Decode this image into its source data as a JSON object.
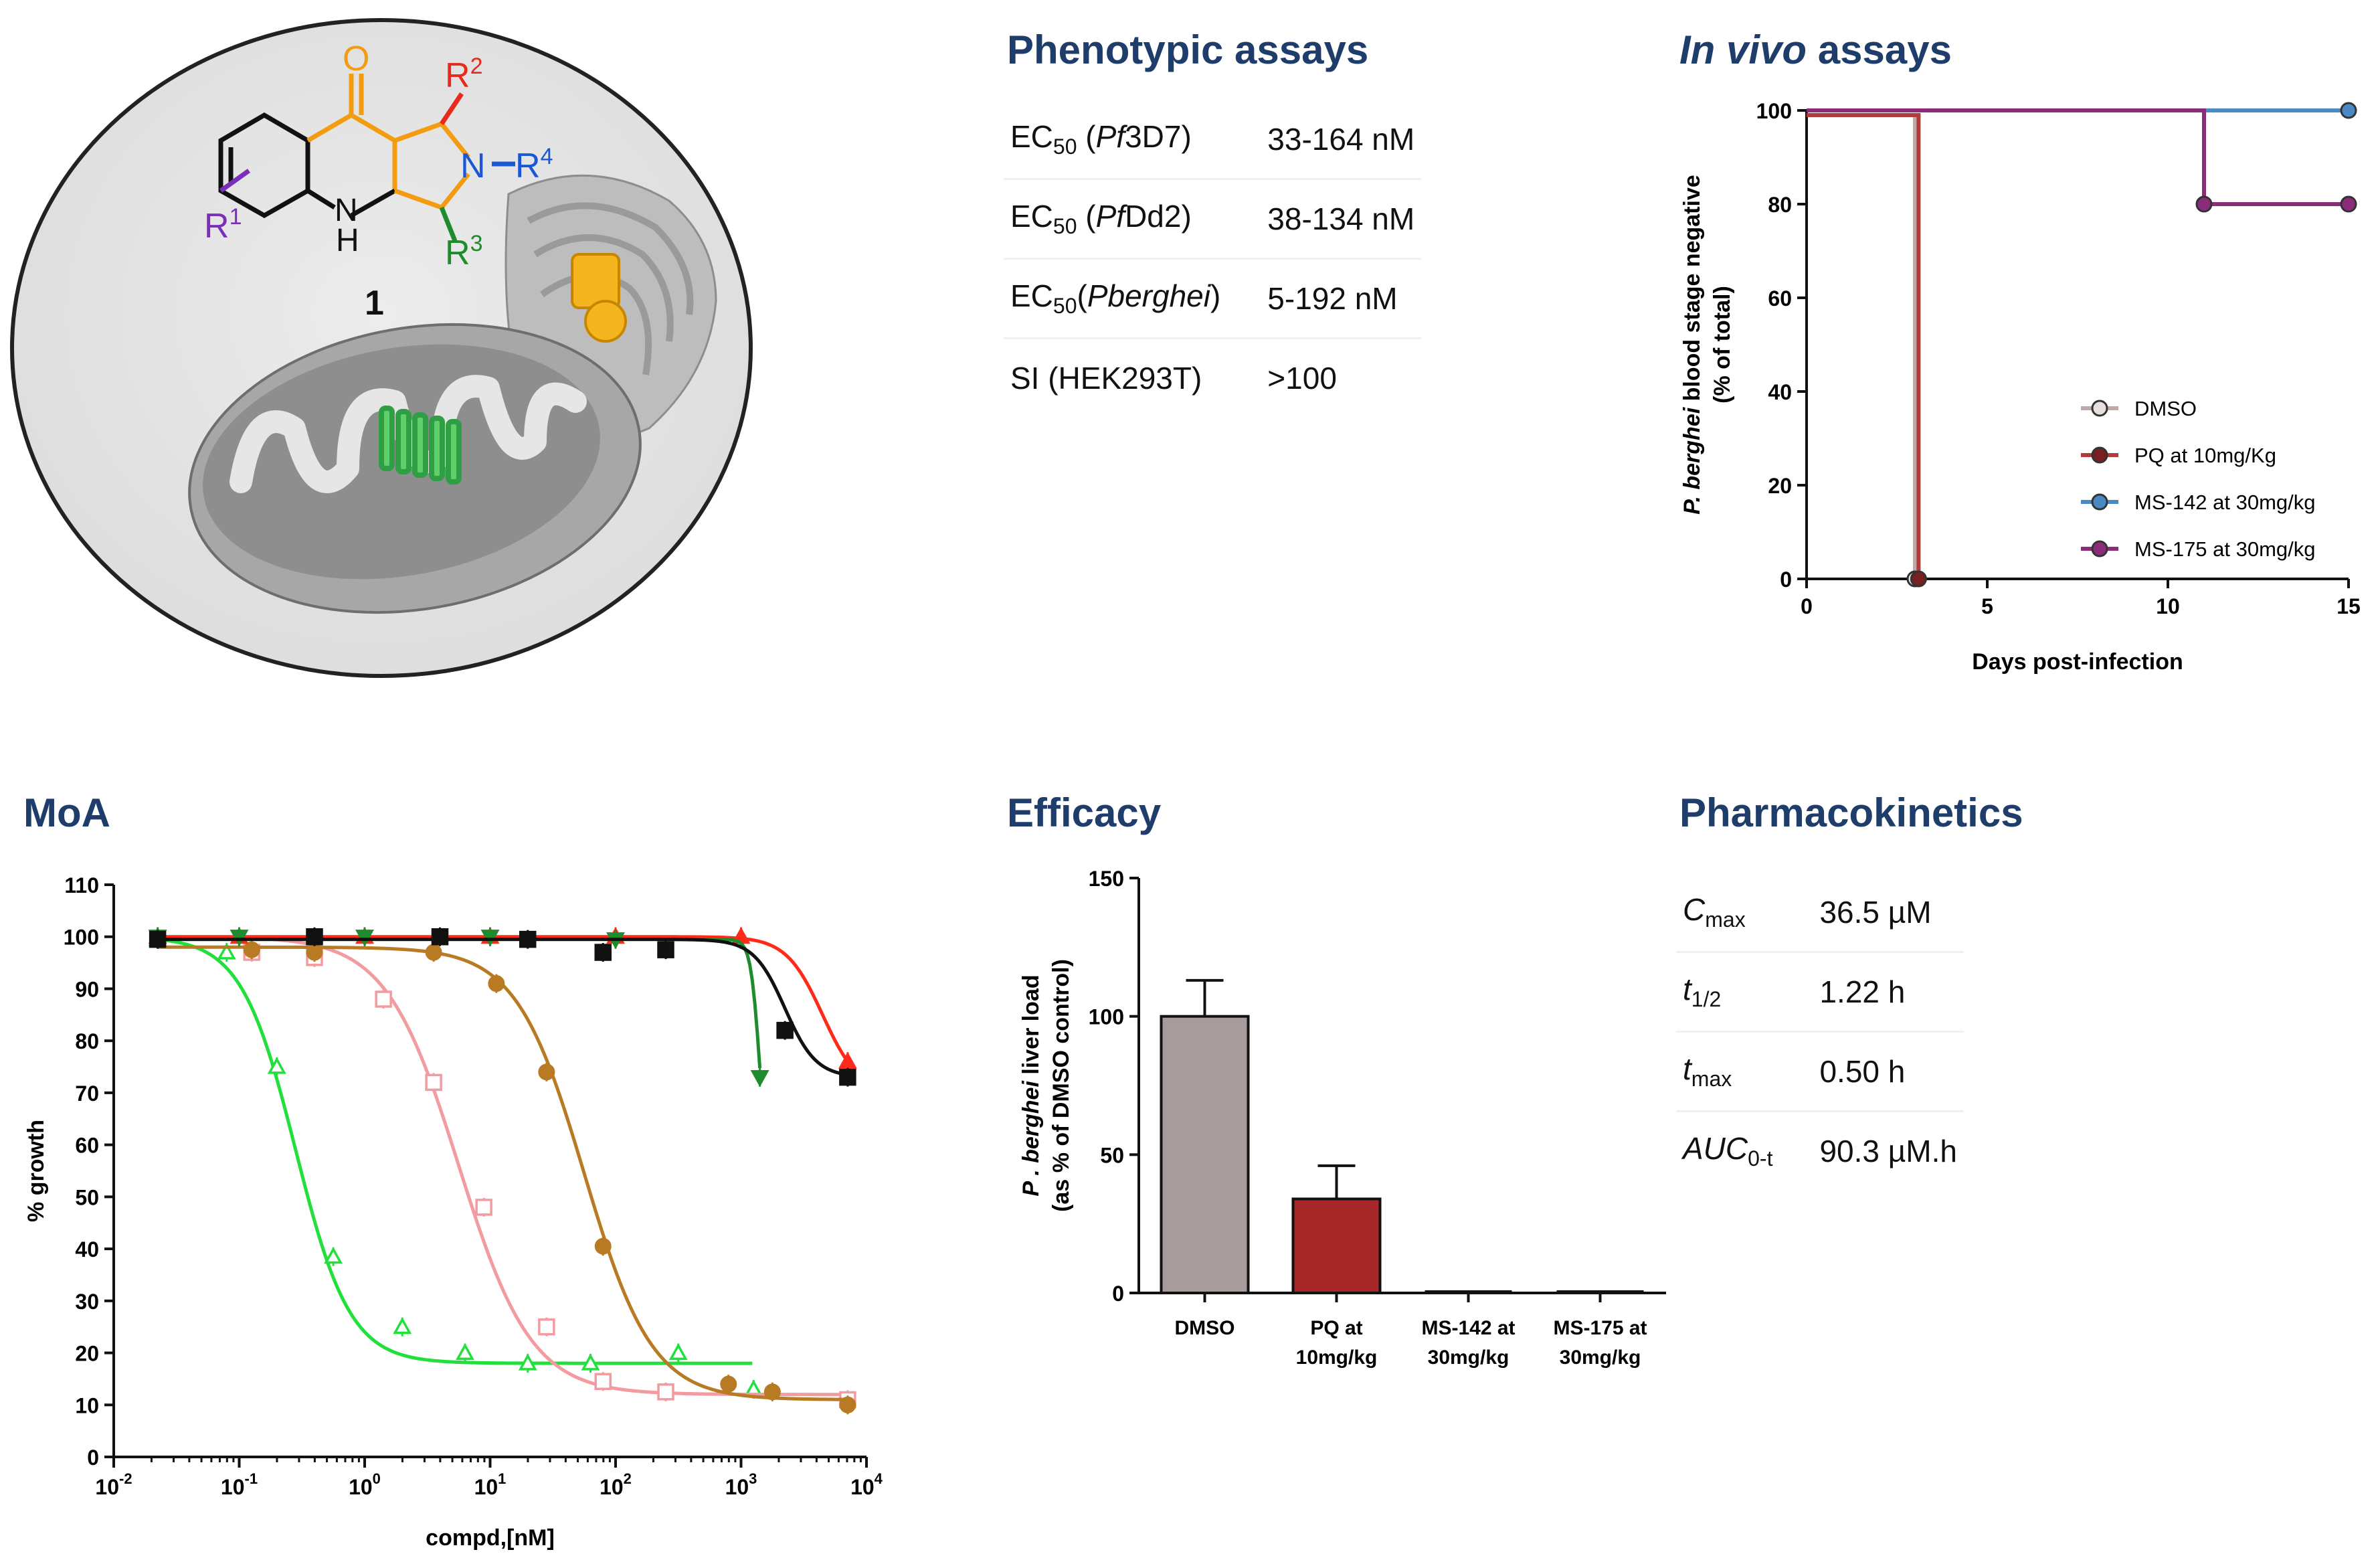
{
  "figure": {
    "illustration": {
      "compound_label": "1",
      "atom_labels": {
        "oxygen": "O",
        "nitrogen_ring": "N",
        "nh_n": "N",
        "nh_h": "H",
        "r1": "R",
        "r1_sup": "1",
        "r2": "R",
        "r2_sup": "2",
        "r3": "R",
        "r3_sup": "3",
        "r4": "R",
        "r4_sup": "4",
        "dash": "–"
      }
    },
    "phenotypic": {
      "heading": "Phenotypic assays",
      "rows": [
        {
          "pre": "EC",
          "sub": "50",
          "open": " (",
          "ital": "Pf",
          "post": "3D7)",
          "value": "33-164 nM"
        },
        {
          "pre": "EC",
          "sub": "50",
          "open": " (",
          "ital": "Pf",
          "post": "Dd2)",
          "value": "38-134 nM"
        },
        {
          "pre": "EC",
          "sub": "50",
          "open": "(",
          "ital": "Pberghei",
          "post": ")",
          "value": "5-192 nM"
        },
        {
          "pre": "SI (HEK293T)",
          "sub": "",
          "open": "",
          "ital": "",
          "post": "",
          "value": ">100"
        }
      ]
    },
    "invivo": {
      "heading_italic": "In vivo",
      "heading_rest": " assays"
    },
    "moa": {
      "heading": "MoA"
    },
    "efficacy": {
      "heading": "Efficacy"
    },
    "pk": {
      "heading": "Pharmacokinetics",
      "rows": [
        {
          "sym": "C",
          "sub": "max",
          "value": "36.5 µM"
        },
        {
          "sym": "t",
          "sub": "1/2",
          "value": "1.22 h"
        },
        {
          "sym": "t",
          "sub": "max",
          "value": "0.50 h"
        },
        {
          "sym": "AUC",
          "sub": "0-t",
          "value": "90.3 µM.h"
        }
      ]
    }
  },
  "chart_data": [
    {
      "id": "invivo",
      "type": "line",
      "xlabel": "Days post-infection",
      "ylabel_italic": "P. berghei",
      "ylabel_rest": " blood stage negative",
      "ylabel2": "(% of total)",
      "xlim": [
        0,
        15
      ],
      "ylim": [
        0,
        100
      ],
      "xticks": [
        0,
        5,
        10,
        15
      ],
      "yticks": [
        0,
        20,
        40,
        60,
        80,
        100
      ],
      "legend_position": "bottom-right",
      "series": [
        {
          "name": "DMSO",
          "color": "#bfa9a9",
          "fill": "#e8dede",
          "x": [
            0,
            3,
            3
          ],
          "y": [
            99,
            99,
            0
          ],
          "markers": [
            [
              3,
              0
            ]
          ]
        },
        {
          "name": "PQ at 10mg/Kg",
          "color": "#b13a3a",
          "fill": "#7a1f1f",
          "x": [
            0,
            3.1,
            3.1
          ],
          "y": [
            99,
            99,
            0
          ],
          "markers": [
            [
              3.1,
              0
            ]
          ]
        },
        {
          "name": "MS-142 at 30mg/kg",
          "color": "#4a8ac4",
          "fill": "#4a8ac4",
          "x": [
            0,
            15
          ],
          "y": [
            100,
            100
          ],
          "markers": [
            [
              15,
              100
            ]
          ]
        },
        {
          "name": "MS-175 at 30mg/kg",
          "color": "#8b2b7a",
          "fill": "#8b2b7a",
          "x": [
            0,
            11,
            11,
            15
          ],
          "y": [
            100,
            100,
            80,
            80
          ],
          "markers": [
            [
              11,
              80
            ],
            [
              15,
              80
            ]
          ]
        }
      ]
    },
    {
      "id": "moa",
      "type": "scatter",
      "xlabel": "compd,[nM]",
      "ylabel": "% growth",
      "xscale": "log",
      "xlim_log10": [
        -2,
        4
      ],
      "xtick_base": "10",
      "xtick_exps": [
        "-2",
        "-1",
        "0",
        "1",
        "2",
        "3",
        "4"
      ],
      "ylim": [
        0,
        110
      ],
      "yticks": [
        0,
        10,
        20,
        30,
        40,
        50,
        60,
        70,
        80,
        90,
        100,
        110
      ],
      "series": [
        {
          "name": "green-bright",
          "color": "#22e03c",
          "marker": "triangle-open",
          "top": 100,
          "bottom": 18,
          "log_ec50": -0.55,
          "hill": 2.0,
          "x_end_log": 3.1,
          "points": [
            [
              -1.65,
              99.5
            ],
            [
              -1.1,
              97
            ],
            [
              -0.7,
              75
            ],
            [
              -0.25,
              38.5
            ],
            [
              0.3,
              25
            ],
            [
              0.8,
              20
            ],
            [
              1.3,
              18
            ],
            [
              1.8,
              18
            ],
            [
              2.5,
              20
            ],
            [
              3.1,
              13
            ]
          ]
        },
        {
          "name": "pink",
          "color": "#f29ba0",
          "marker": "square-open",
          "top": 100,
          "bottom": 12,
          "log_ec50": 0.75,
          "hill": 1.5,
          "x_end_log": 3.9,
          "points": [
            [
              -0.9,
              97
            ],
            [
              -0.4,
              96
            ],
            [
              0.15,
              88
            ],
            [
              0.55,
              72
            ],
            [
              0.95,
              48
            ],
            [
              1.45,
              25
            ],
            [
              1.9,
              14.5
            ],
            [
              2.4,
              12.5
            ],
            [
              3.85,
              11
            ]
          ]
        },
        {
          "name": "brown",
          "color": "#b87a22",
          "marker": "circle-filled",
          "top": 98,
          "bottom": 11,
          "log_ec50": 1.75,
          "hill": 1.6,
          "x_end_log": 3.9,
          "points": [
            [
              -0.9,
              97.5
            ],
            [
              -0.4,
              97
            ],
            [
              0.55,
              97
            ],
            [
              1.05,
              91
            ],
            [
              1.45,
              74
            ],
            [
              1.9,
              40.5
            ],
            [
              2.9,
              14
            ],
            [
              3.25,
              12.5
            ],
            [
              3.85,
              10
            ]
          ]
        },
        {
          "name": "red",
          "color": "#ff2a1a",
          "marker": "triangle-filled",
          "top": 100,
          "bottom": 70,
          "log_ec50": 3.65,
          "hill": 3.0,
          "x_end_log": 3.85,
          "points": [
            [
              -1.65,
              100
            ],
            [
              -1.0,
              100
            ],
            [
              0.0,
              100
            ],
            [
              1.0,
              100
            ],
            [
              2.0,
              100
            ],
            [
              3.0,
              100
            ],
            [
              3.85,
              76
            ]
          ]
        },
        {
          "name": "dark-green",
          "color": "#1e8c2c",
          "marker": "triangle-down-filled",
          "top": 99.5,
          "bottom": 50,
          "log_ec50": 3.15,
          "hill": 12,
          "x_end_log": 3.15,
          "points": [
            [
              -1.65,
              100
            ],
            [
              -1.0,
              100
            ],
            [
              0.0,
              100
            ],
            [
              1.0,
              100
            ],
            [
              2.0,
              99.5
            ],
            [
              3.15,
              73
            ]
          ]
        },
        {
          "name": "black",
          "color": "#111111",
          "marker": "square-filled",
          "top": 99.5,
          "bottom": 73,
          "log_ec50": 3.35,
          "hill": 3.5,
          "x_end_log": 3.85,
          "points": [
            [
              -1.65,
              99.5
            ],
            [
              -0.4,
              100
            ],
            [
              0.6,
              100
            ],
            [
              1.3,
              99.5
            ],
            [
              1.9,
              97
            ],
            [
              2.4,
              97.5
            ],
            [
              3.35,
              82
            ],
            [
              3.85,
              73
            ]
          ]
        }
      ]
    },
    {
      "id": "efficacy",
      "type": "bar",
      "ylabel_italic": "P . berghei",
      "ylabel_rest": " liver load",
      "ylabel2": "(as % of DMSO control)",
      "ylim": [
        0,
        150
      ],
      "yticks": [
        0,
        50,
        100,
        150
      ],
      "categories": [
        [
          "DMSO"
        ],
        [
          "PQ at",
          "10mg/kg"
        ],
        [
          "MS-142 at",
          "30mg/kg"
        ],
        [
          "MS-175 at",
          "30mg/kg"
        ]
      ],
      "values": [
        100,
        34,
        0,
        0
      ],
      "errors": [
        13,
        12,
        0,
        0
      ],
      "colors": [
        "#a89b9b",
        "#a8282a",
        "#111111",
        "#111111"
      ]
    }
  ]
}
